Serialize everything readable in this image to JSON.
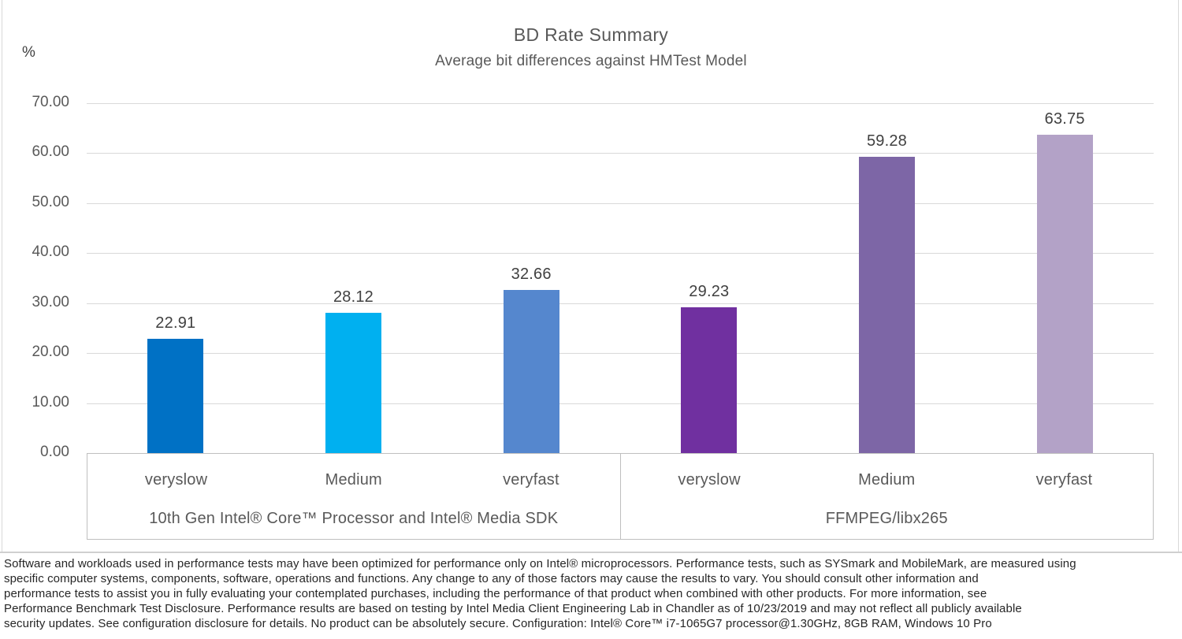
{
  "chart_data": {
    "type": "bar",
    "title": "BD Rate Summary",
    "subtitle": "Average bit differences against HMTest Model",
    "unit_label": "%",
    "ylim": [
      0,
      70
    ],
    "ytick_step": 10,
    "ytick_labels": [
      "70.00",
      "60.00",
      "50.00",
      "40.00",
      "30.00",
      "20.00",
      "10.00",
      "0.00"
    ],
    "grid": true,
    "legend": "none",
    "groups": [
      {
        "label": "10th Gen Intel® Core™ Processor and Intel® Media SDK",
        "bars": [
          {
            "category": "veryslow",
            "value": 22.91,
            "label": "22.91",
            "color": "#0071c5"
          },
          {
            "category": "Medium",
            "value": 28.12,
            "label": "28.12",
            "color": "#00b0f0"
          },
          {
            "category": "veryfast",
            "value": 32.66,
            "label": "32.66",
            "color": "#5587ce"
          }
        ]
      },
      {
        "label": "FFMPEG/libx265",
        "bars": [
          {
            "category": "veryslow",
            "value": 29.23,
            "label": "29.23",
            "color": "#7030a0"
          },
          {
            "category": "Medium",
            "value": 59.28,
            "label": "59.28",
            "color": "#7d66a6"
          },
          {
            "category": "veryfast",
            "value": 63.75,
            "label": "63.75",
            "color": "#b3a2c7"
          }
        ]
      }
    ],
    "colors": {
      "gridline": "#d9d9d9",
      "axis_border": "#bfbfbf",
      "title_text": "#595959",
      "tick_text": "#595959",
      "data_label_text": "#404040"
    }
  },
  "footer": {
    "lines": [
      "Software and workloads used in performance tests may have been optimized for performance only on Intel® microprocessors. Performance tests, such as SYSmark and MobileMark, are measured using",
      "specific computer systems, components, software, operations and functions. Any change to any of those factors may cause the results to vary. You should consult other information and",
      "performance tests to assist you in fully evaluating your contemplated purchases, including the performance of that product when combined with other products. For more information, see",
      "Performance Benchmark Test Disclosure. Performance results are based on testing by Intel Media Client Engineering Lab in Chandler as of 10/23/2019 and may not reflect all publicly available",
      "security updates. See configuration disclosure for details. No product can be absolutely secure. Configuration: Intel® Core™ i7-1065G7 processor@1.30GHz, 8GB RAM, Windows 10 Pro"
    ]
  }
}
